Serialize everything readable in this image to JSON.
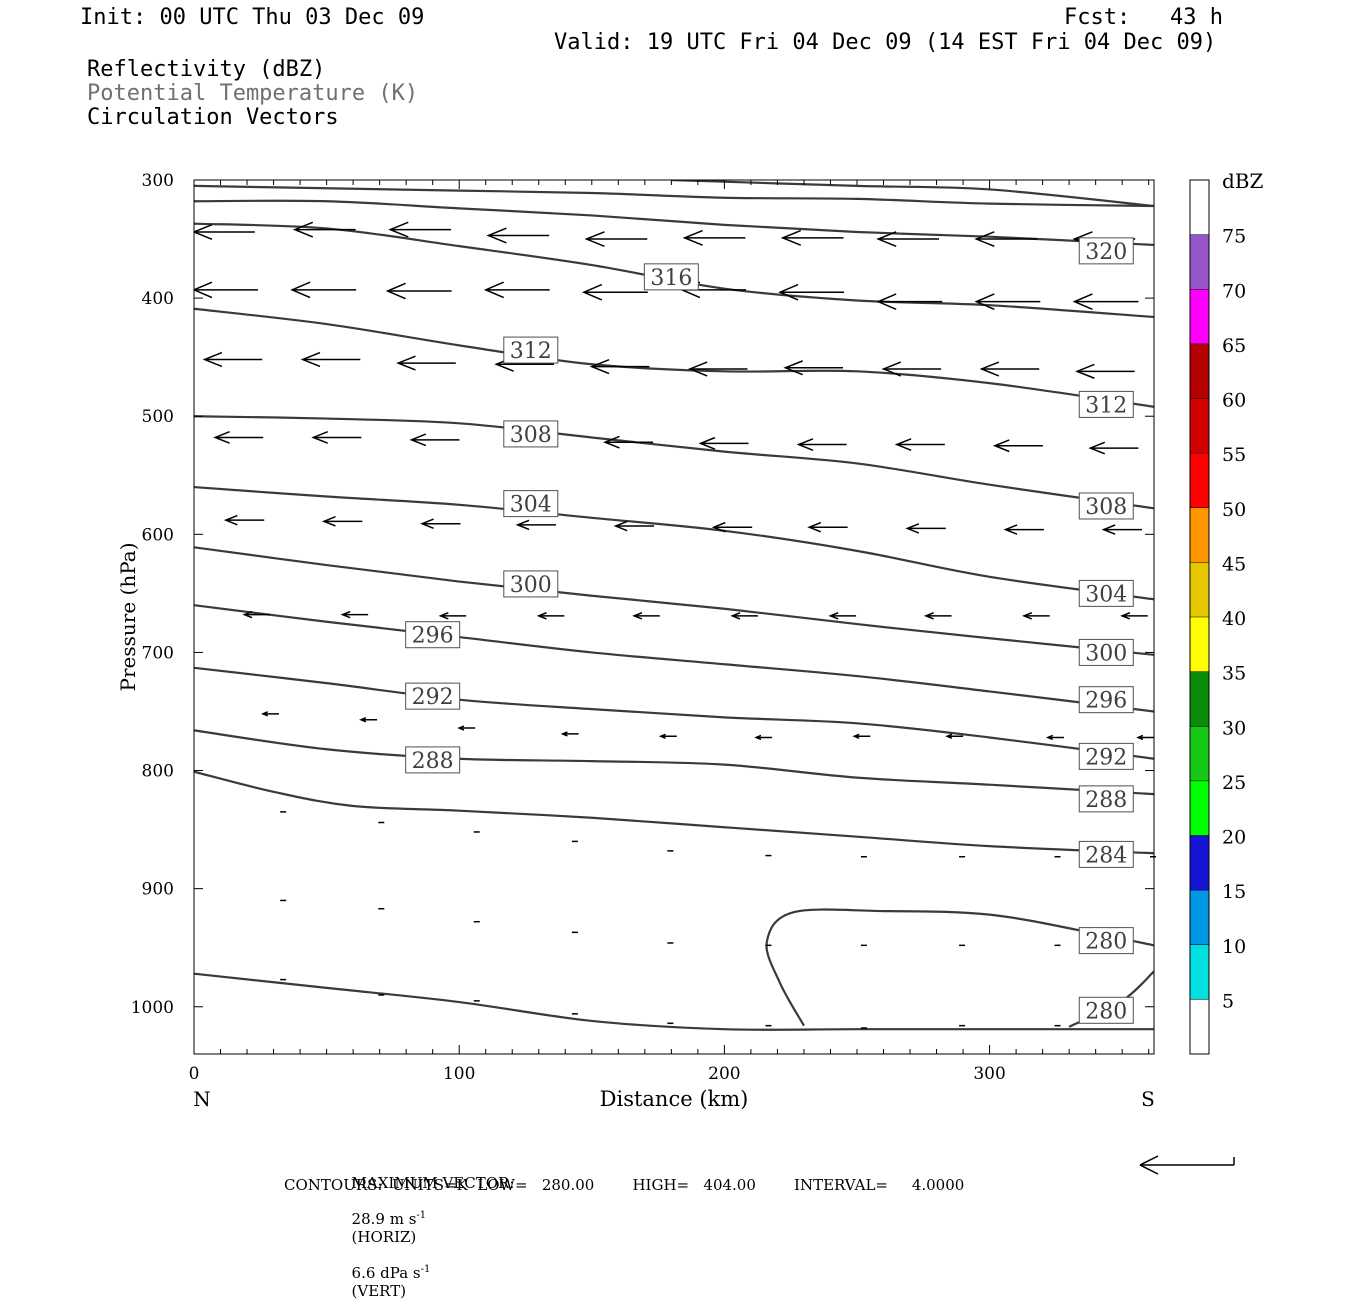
{
  "header": {
    "init": "Init: 00 UTC Thu 03 Dec 09",
    "fcst": "Fcst:   43 h",
    "valid": "Valid: 19 UTC Fri 04 Dec 09 (14 EST Fri 04 Dec 09)",
    "field1": "Reflectivity (dBZ)",
    "field2": "Potential Temperature (K)",
    "field3": "Circulation Vectors"
  },
  "footer": {
    "line1_label": "MAXIMUM VECTOR:",
    "line1_horiz": "28.9 m s",
    "line1_horiz_unit": "(HORIZ)",
    "line1_vert": "6.6 dPa s",
    "line1_vert_unit": "(VERT)",
    "superscript": "-1",
    "line2": "CONTOURS:  UNITS=K  LOW=   280.00        HIGH=   404.00        INTERVAL=     4.0000"
  },
  "colors": {
    "contour": "#3a3a3a",
    "vector": "#000000"
  },
  "chart_data": {
    "type": "cross-section",
    "xlabel": "Distance (km)",
    "ylabel": "Pressure (hPa)",
    "xlim": [
      0,
      362
    ],
    "ylim": [
      1040,
      300
    ],
    "x_ticks": [
      0,
      100,
      200,
      300
    ],
    "y_ticks": [
      300,
      400,
      500,
      600,
      700,
      800,
      900,
      1000
    ],
    "x_end_labels": {
      "left": "N",
      "right": "S"
    },
    "colorbar": {
      "title": "dBZ",
      "levels": [
        5,
        10,
        15,
        20,
        25,
        30,
        35,
        40,
        45,
        50,
        55,
        60,
        65,
        70,
        75
      ],
      "colors": [
        "#ffffff",
        "#00e0e0",
        "#0096e6",
        "#1414d2",
        "#00ff00",
        "#14c814",
        "#0a8c0a",
        "#ffff00",
        "#e6c800",
        "#ff9600",
        "#ff0000",
        "#d20000",
        "#b40000",
        "#ff00ff",
        "#9655c8",
        "#ffffff"
      ]
    },
    "contours": [
      {
        "value": 280,
        "label": "280",
        "points": [
          [
            0,
            972
          ],
          [
            50,
            984
          ],
          [
            100,
            996
          ],
          [
            150,
            1012
          ],
          [
            200,
            1019
          ],
          [
            250,
            1019
          ],
          [
            300,
            1019
          ],
          [
            362,
            1019
          ]
        ],
        "labels": [
          [
            344,
            1003
          ]
        ]
      },
      {
        "value": 280,
        "label": "280",
        "points": [
          [
            230,
            1016
          ],
          [
            221,
            980
          ],
          [
            216,
            945
          ],
          [
            226,
            920
          ],
          [
            260,
            919
          ],
          [
            300,
            922
          ],
          [
            340,
            938
          ],
          [
            362,
            948
          ]
        ],
        "labels": [
          [
            344,
            944
          ]
        ]
      },
      {
        "value": 280,
        "label": "",
        "points": [
          [
            330,
            1017
          ],
          [
            350,
            995
          ],
          [
            362,
            970
          ]
        ],
        "labels": []
      },
      {
        "value": 284,
        "label": "284",
        "points": [
          [
            0,
            801
          ],
          [
            30,
            818
          ],
          [
            60,
            830
          ],
          [
            100,
            834
          ],
          [
            150,
            840
          ],
          [
            200,
            848
          ],
          [
            250,
            856
          ],
          [
            300,
            864
          ],
          [
            362,
            870
          ]
        ],
        "labels": [
          [
            344,
            871
          ]
        ]
      },
      {
        "value": 288,
        "label": "288",
        "points": [
          [
            0,
            766
          ],
          [
            50,
            782
          ],
          [
            100,
            790
          ],
          [
            150,
            792
          ],
          [
            200,
            795
          ],
          [
            250,
            806
          ],
          [
            300,
            812
          ],
          [
            362,
            820
          ]
        ],
        "labels": [
          [
            90,
            791
          ],
          [
            344,
            824
          ]
        ]
      },
      {
        "value": 292,
        "label": "292",
        "points": [
          [
            0,
            713
          ],
          [
            50,
            726
          ],
          [
            100,
            740
          ],
          [
            150,
            748
          ],
          [
            200,
            755
          ],
          [
            250,
            760
          ],
          [
            300,
            772
          ],
          [
            362,
            790
          ]
        ],
        "labels": [
          [
            90,
            737
          ],
          [
            344,
            788
          ]
        ]
      },
      {
        "value": 296,
        "label": "296",
        "points": [
          [
            0,
            660
          ],
          [
            50,
            674
          ],
          [
            100,
            687
          ],
          [
            150,
            700
          ],
          [
            200,
            710
          ],
          [
            250,
            720
          ],
          [
            300,
            733
          ],
          [
            362,
            750
          ]
        ],
        "labels": [
          [
            90,
            685
          ],
          [
            344,
            740
          ]
        ]
      },
      {
        "value": 300,
        "label": "300",
        "points": [
          [
            0,
            611
          ],
          [
            50,
            626
          ],
          [
            100,
            640
          ],
          [
            150,
            652
          ],
          [
            200,
            663
          ],
          [
            250,
            676
          ],
          [
            300,
            688
          ],
          [
            362,
            702
          ]
        ],
        "labels": [
          [
            127,
            642
          ],
          [
            344,
            700
          ]
        ]
      },
      {
        "value": 304,
        "label": "304",
        "points": [
          [
            0,
            560
          ],
          [
            50,
            568
          ],
          [
            100,
            575
          ],
          [
            150,
            586
          ],
          [
            200,
            597
          ],
          [
            250,
            614
          ],
          [
            300,
            636
          ],
          [
            362,
            655
          ]
        ],
        "labels": [
          [
            127,
            574
          ],
          [
            344,
            650
          ]
        ]
      },
      {
        "value": 308,
        "label": "308",
        "points": [
          [
            0,
            500
          ],
          [
            50,
            502
          ],
          [
            100,
            506
          ],
          [
            150,
            518
          ],
          [
            200,
            530
          ],
          [
            250,
            540
          ],
          [
            300,
            558
          ],
          [
            362,
            578
          ]
        ],
        "labels": [
          [
            127,
            515
          ],
          [
            344,
            576
          ]
        ]
      },
      {
        "value": 312,
        "label": "312",
        "points": [
          [
            0,
            409
          ],
          [
            50,
            422
          ],
          [
            100,
            440
          ],
          [
            150,
            456
          ],
          [
            200,
            462
          ],
          [
            250,
            462
          ],
          [
            300,
            472
          ],
          [
            362,
            492
          ]
        ],
        "labels": [
          [
            127,
            444
          ],
          [
            344,
            490
          ]
        ]
      },
      {
        "value": 316,
        "label": "316",
        "points": [
          [
            0,
            337
          ],
          [
            50,
            341
          ],
          [
            100,
            356
          ],
          [
            150,
            372
          ],
          [
            200,
            392
          ],
          [
            250,
            402
          ],
          [
            300,
            406
          ],
          [
            362,
            416
          ]
        ],
        "labels": [
          [
            180,
            382
          ]
        ]
      },
      {
        "value": 320,
        "label": "320",
        "points": [
          [
            0,
            318
          ],
          [
            50,
            318
          ],
          [
            100,
            324
          ],
          [
            150,
            330
          ],
          [
            200,
            338
          ],
          [
            250,
            344
          ],
          [
            300,
            348
          ],
          [
            362,
            355
          ]
        ],
        "labels": [
          [
            344,
            360
          ]
        ]
      },
      {
        "value": 324,
        "label": "",
        "points": [
          [
            0,
            305
          ],
          [
            50,
            307
          ],
          [
            100,
            309
          ],
          [
            150,
            311
          ],
          [
            200,
            315
          ],
          [
            250,
            316
          ],
          [
            300,
            320
          ],
          [
            362,
            322
          ]
        ],
        "labels": []
      },
      {
        "value": 328,
        "label": "",
        "points": [
          [
            180,
            300
          ],
          [
            250,
            305
          ],
          [
            300,
            308
          ],
          [
            362,
            322
          ]
        ],
        "labels": []
      }
    ],
    "vectors": [
      {
        "p": 340,
        "items": [
          [
            0,
            344,
            -19
          ],
          [
            38,
            342,
            -19
          ],
          [
            74,
            342,
            -19
          ],
          [
            111,
            347,
            -19
          ],
          [
            148,
            350,
            -19
          ],
          [
            185,
            349,
            -19
          ],
          [
            222,
            349,
            -19
          ],
          [
            258,
            350,
            -19
          ],
          [
            295,
            350,
            -19
          ],
          [
            332,
            350,
            -19
          ]
        ]
      },
      {
        "p": 393,
        "items": [
          [
            0,
            393,
            -20
          ],
          [
            37,
            393,
            -20
          ],
          [
            73,
            394,
            -20
          ],
          [
            110,
            393,
            -20
          ],
          [
            147,
            395,
            -20
          ],
          [
            184,
            393,
            -20
          ],
          [
            221,
            395,
            -20
          ],
          [
            258,
            403,
            -20
          ],
          [
            295,
            403,
            -20
          ],
          [
            332,
            403,
            -20
          ]
        ]
      },
      {
        "p": 452,
        "items": [
          [
            4,
            452,
            -18
          ],
          [
            41,
            452,
            -18
          ],
          [
            77,
            455,
            -18
          ],
          [
            114,
            456,
            -18
          ],
          [
            150,
            458,
            -18
          ],
          [
            187,
            460,
            -18
          ],
          [
            223,
            459,
            -18
          ],
          [
            260,
            460,
            -18
          ],
          [
            297,
            460,
            -18
          ],
          [
            333,
            462,
            -18
          ]
        ]
      },
      {
        "p": 517,
        "items": [
          [
            8,
            518,
            -15
          ],
          [
            45,
            518,
            -15
          ],
          [
            82,
            520,
            -15
          ],
          [
            118,
            521,
            -15
          ],
          [
            155,
            522,
            -15
          ],
          [
            191,
            523,
            -15
          ],
          [
            228,
            524,
            -15
          ],
          [
            265,
            524,
            -15
          ],
          [
            302,
            525,
            -15
          ],
          [
            338,
            527,
            -15
          ]
        ]
      },
      {
        "p": 588,
        "items": [
          [
            12,
            588,
            -12
          ],
          [
            49,
            589,
            -12
          ],
          [
            86,
            591,
            -12
          ],
          [
            122,
            592,
            -12
          ],
          [
            159,
            593,
            -12
          ],
          [
            196,
            594,
            -12
          ],
          [
            232,
            594,
            -12
          ],
          [
            269,
            595,
            -12
          ],
          [
            306,
            596,
            -12
          ],
          [
            343,
            596,
            -12
          ]
        ]
      },
      {
        "p": 665,
        "items": [
          [
            19,
            668,
            -8
          ],
          [
            56,
            668,
            -8
          ],
          [
            93,
            669,
            -8
          ],
          [
            130,
            669,
            -8
          ],
          [
            166,
            669,
            -8
          ],
          [
            203,
            669,
            -8
          ],
          [
            240,
            669,
            -8
          ],
          [
            276,
            669,
            -8
          ],
          [
            313,
            669,
            -8
          ],
          [
            350,
            669,
            -8
          ]
        ]
      },
      {
        "p": 753,
        "items": [
          [
            26,
            752,
            -5
          ],
          [
            63,
            757,
            -5
          ],
          [
            100,
            764,
            -5
          ],
          [
            139,
            769,
            -5
          ],
          [
            176,
            771,
            -5
          ],
          [
            212,
            772,
            -5
          ],
          [
            249,
            771,
            -5
          ],
          [
            284,
            771,
            -5
          ],
          [
            322,
            772,
            -5
          ],
          [
            356,
            772,
            -5
          ]
        ]
      }
    ],
    "dots": [
      [
        34,
        835
      ],
      [
        71,
        844
      ],
      [
        107,
        852
      ],
      [
        144,
        860
      ],
      [
        180,
        868
      ],
      [
        217,
        872
      ],
      [
        253,
        873
      ],
      [
        290,
        873
      ],
      [
        326,
        873
      ],
      [
        362,
        873
      ],
      [
        34,
        910
      ],
      [
        71,
        917
      ],
      [
        107,
        928
      ],
      [
        144,
        937
      ],
      [
        180,
        946
      ],
      [
        217,
        948
      ],
      [
        253,
        948
      ],
      [
        290,
        948
      ],
      [
        326,
        948
      ],
      [
        34,
        977
      ],
      [
        71,
        990
      ],
      [
        107,
        995
      ],
      [
        144,
        1006
      ],
      [
        180,
        1014
      ],
      [
        217,
        1016
      ],
      [
        253,
        1018
      ],
      [
        290,
        1016
      ],
      [
        326,
        1016
      ]
    ]
  }
}
